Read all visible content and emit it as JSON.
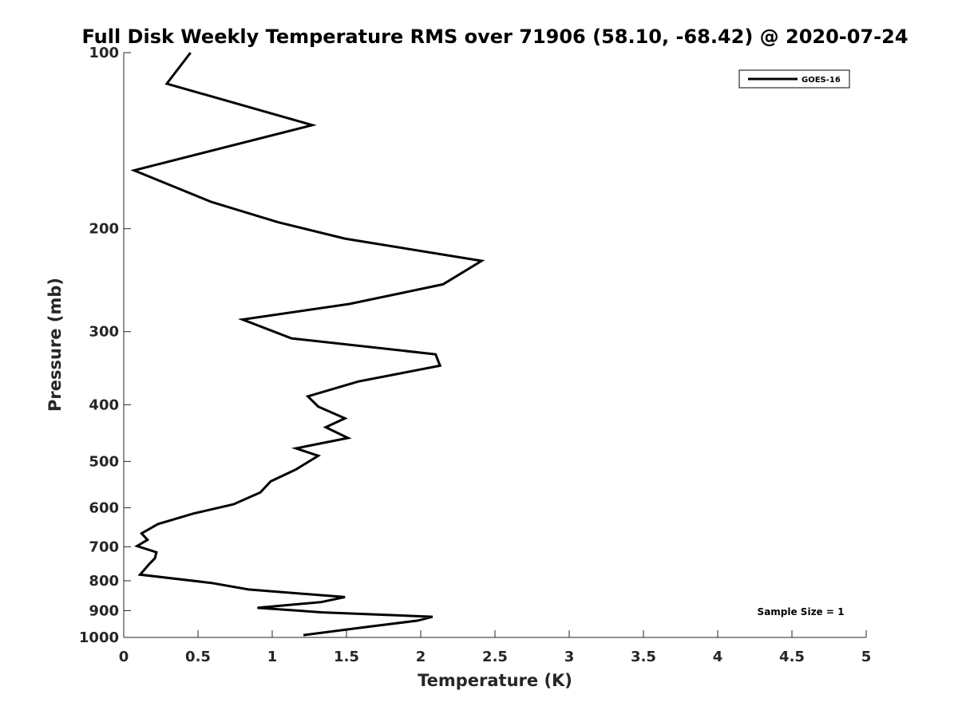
{
  "chart_data": {
    "type": "line",
    "title": "Full Disk Weekly Temperature RMS over 71906 (58.10, -68.42) @ 2020-07-24",
    "xlabel": "Temperature (K)",
    "ylabel": "Pressure (mb)",
    "xlim": [
      0,
      5
    ],
    "ylim": [
      100,
      1000
    ],
    "y_scale": "log",
    "y_reversed": true,
    "grid": false,
    "x_ticks": [
      0,
      0.5,
      1,
      1.5,
      2,
      2.5,
      3,
      3.5,
      4,
      4.5,
      5
    ],
    "x_tick_labels": [
      "0",
      "0.5",
      "1",
      "1.5",
      "2",
      "2.5",
      "3",
      "3.5",
      "4",
      "4.5",
      "5"
    ],
    "y_ticks": [
      100,
      200,
      300,
      400,
      500,
      600,
      700,
      800,
      900,
      1000
    ],
    "y_tick_labels": [
      "100",
      "200",
      "300",
      "400",
      "500",
      "600",
      "700",
      "800",
      "900",
      "1000"
    ],
    "legend_position": "top-right",
    "series": [
      {
        "name": "GOES-16",
        "color": "#000000",
        "x": [
          0.45,
          0.29,
          1.27,
          0.07,
          0.59,
          1.04,
          1.49,
          2.41,
          2.15,
          1.52,
          0.8,
          1.13,
          2.1,
          2.13,
          1.58,
          1.24,
          1.31,
          1.49,
          1.36,
          1.51,
          1.16,
          1.31,
          1.16,
          0.99,
          0.92,
          0.74,
          0.47,
          0.23,
          0.12,
          0.16,
          0.09,
          0.22,
          0.21,
          0.17,
          0.11,
          0.59,
          0.84,
          1.49,
          1.33,
          0.9,
          1.34,
          2.08,
          1.98,
          1.63,
          1.21
        ],
        "y": [
          100,
          113,
          133,
          159,
          180,
          195,
          208,
          227,
          249,
          269,
          286,
          308,
          328,
          343,
          365,
          387,
          403,
          422,
          437,
          456,
          475,
          489,
          516,
          541,
          565,
          592,
          614,
          640,
          664,
          681,
          698,
          715,
          732,
          750,
          781,
          807,
          828,
          853,
          870,
          890,
          906,
          922,
          936,
          960,
          991
        ]
      }
    ],
    "annotations": [
      {
        "text": "Sample Size = 1",
        "x": 4.55,
        "y": 900
      }
    ]
  }
}
